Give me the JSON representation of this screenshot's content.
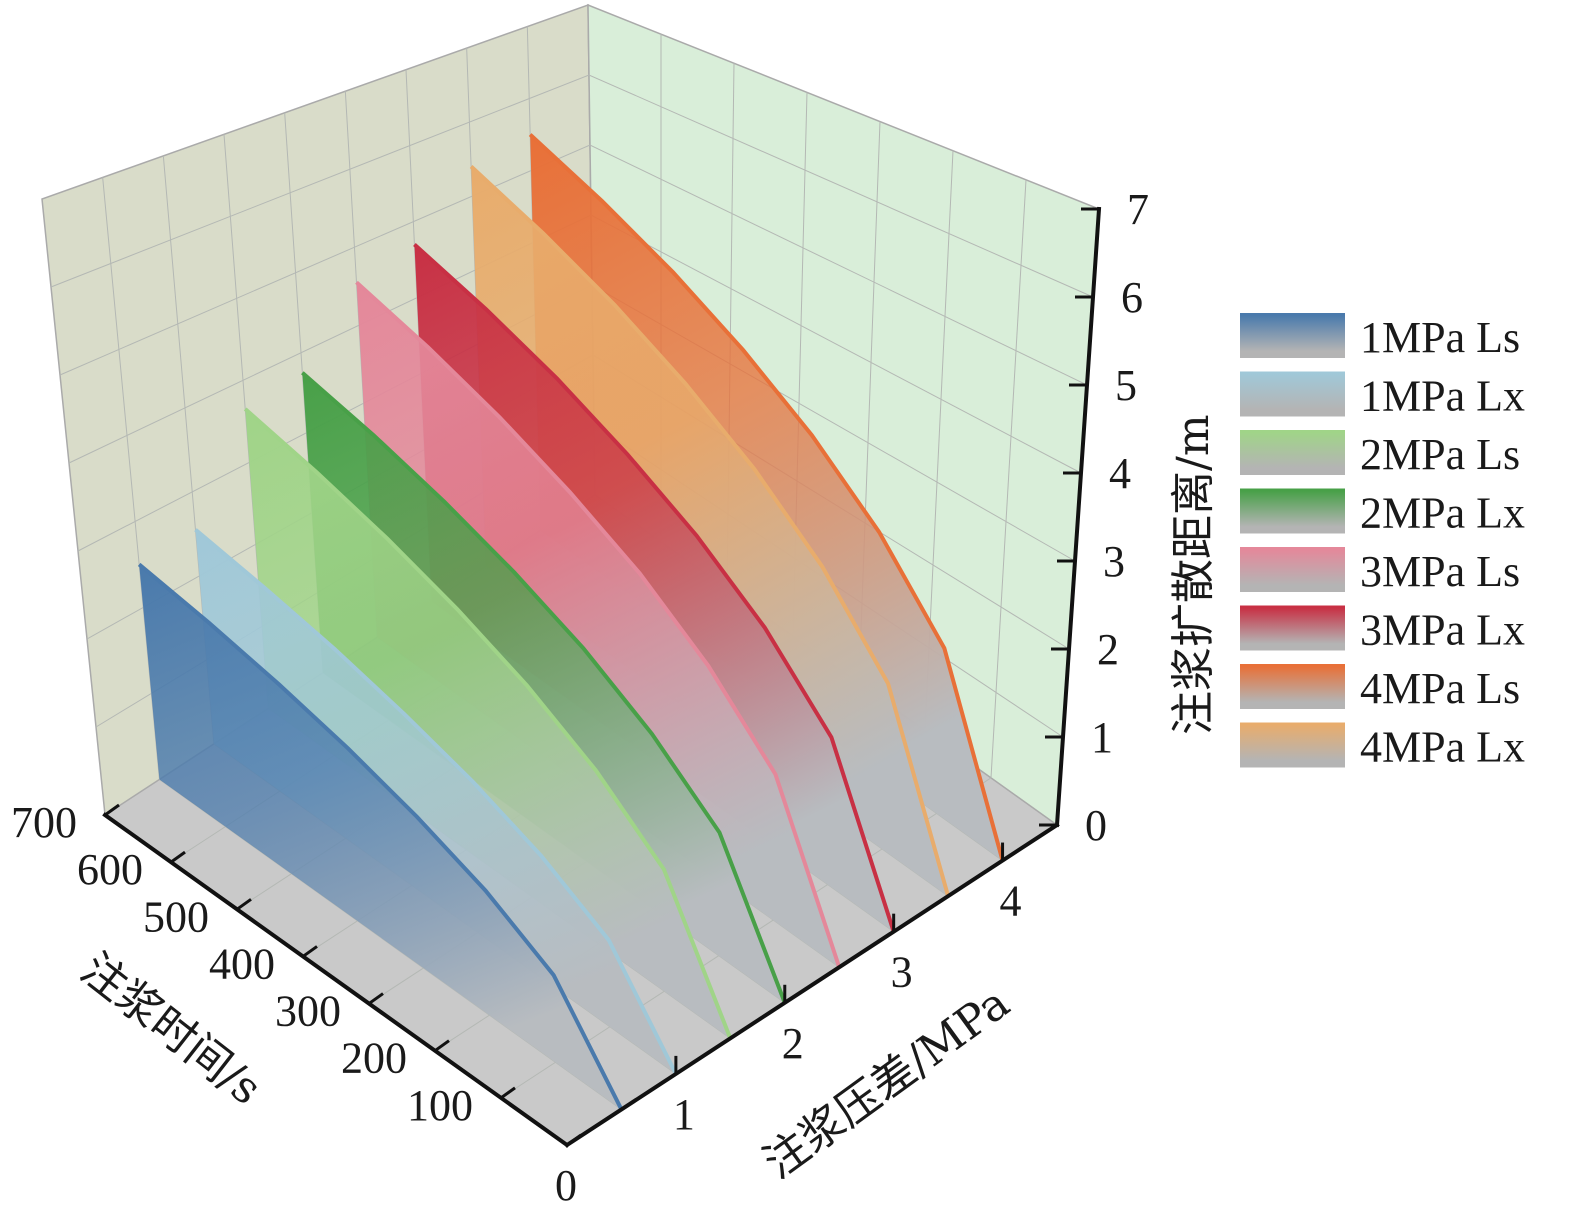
{
  "chart_data": {
    "type": "3d-wall",
    "x_axis": {
      "label": "注浆压差/MPa",
      "range": [
        0,
        4.5
      ],
      "ticks": [
        "0",
        "1",
        "2",
        "3",
        "4"
      ]
    },
    "y_axis": {
      "label": "注浆时间/s",
      "range": [
        0,
        700
      ],
      "ticks": [
        "0",
        "100",
        "200",
        "300",
        "400",
        "500",
        "600",
        "700"
      ]
    },
    "z_axis": {
      "label": "注浆扩散距离/m",
      "range": [
        0,
        7
      ],
      "ticks": [
        "0",
        "1",
        "2",
        "3",
        "4",
        "5",
        "6",
        "7"
      ]
    },
    "grid": true,
    "legend_position": "right",
    "time": [
      0,
      100,
      200,
      300,
      400,
      500,
      600,
      700
    ],
    "series": [
      {
        "name": "1MPa Ls",
        "pressure": 1,
        "color": "#4a7aac",
        "values": [
          0,
          0.86,
          1.26,
          1.57,
          1.84,
          2.08,
          2.3,
          2.5
        ]
      },
      {
        "name": "1MPa Lx",
        "pressure": 1,
        "color": "#a0c8d8",
        "values": [
          0,
          0.87,
          1.28,
          1.6,
          1.87,
          2.12,
          2.34,
          2.55
        ]
      },
      {
        "name": "2MPa Ls",
        "pressure": 2,
        "color": "#a0d488",
        "values": [
          0,
          1.25,
          1.83,
          2.29,
          2.68,
          3.03,
          3.35,
          3.65
        ]
      },
      {
        "name": "2MPa Lx",
        "pressure": 2,
        "color": "#48a048",
        "values": [
          0,
          1.29,
          1.88,
          2.36,
          2.76,
          3.12,
          3.45,
          3.75
        ]
      },
      {
        "name": "3MPa Ls",
        "pressure": 3,
        "color": "#e4889a",
        "values": [
          0,
          1.56,
          2.28,
          2.86,
          3.34,
          3.78,
          4.18,
          4.55
        ]
      },
      {
        "name": "3MPa Lx",
        "pressure": 3,
        "color": "#c83044",
        "values": [
          0,
          1.61,
          2.36,
          2.95,
          3.45,
          3.91,
          4.32,
          4.7
        ]
      },
      {
        "name": "4MPa Ls",
        "pressure": 4,
        "color": "#e87038",
        "values": [
          0,
          1.89,
          2.76,
          3.45,
          4.04,
          4.57,
          5.05,
          5.5
        ]
      },
      {
        "name": "4MPa Lx",
        "pressure": 4,
        "color": "#e8ac6c",
        "values": [
          0,
          1.85,
          2.71,
          3.39,
          3.97,
          4.49,
          4.96,
          5.4
        ]
      }
    ],
    "panel_colors": {
      "back_wall": "#d9dcc9",
      "side_wall": "#d9eed9",
      "floor": "#c9c9c9"
    }
  }
}
